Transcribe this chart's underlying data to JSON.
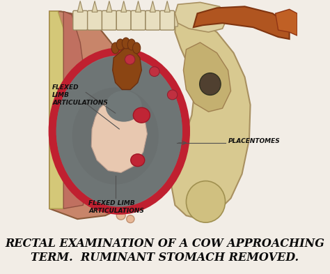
{
  "title_line1": "RECTAL EXAMINATION OF A COW APPROACHING",
  "title_line2": "TERM.  RUMINANT STOMACH REMOVED.",
  "bg_color": "#f2ede6",
  "label_left_top": "FLEXED\nLIMB\nARTICULATIONS",
  "label_left_bottom": "FLEXED LIMB\nARTICULATIONS",
  "label_right": "PLACENTOMES",
  "title_fontsize": 11.5,
  "label_fontsize": 6.5
}
